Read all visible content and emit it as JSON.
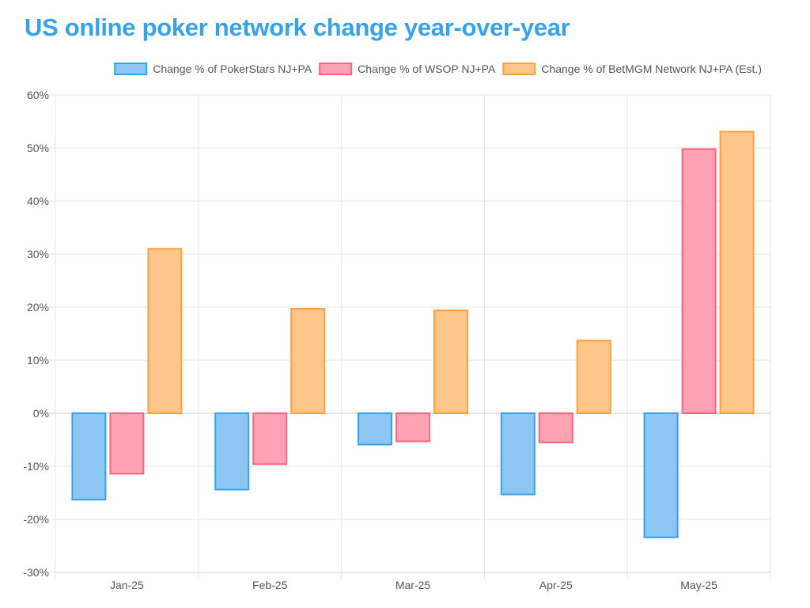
{
  "chart_data": {
    "type": "bar",
    "title": "US online poker network change year-over-year",
    "xlabel": "",
    "ylabel": "",
    "categories": [
      "Jan-25",
      "Feb-25",
      "Mar-25",
      "Apr-25",
      "May-25"
    ],
    "series": [
      {
        "name": "Change % of PokerStars NJ+PA",
        "values": [
          -16.3,
          -14.4,
          -5.9,
          -15.3,
          -23.4
        ],
        "fill": "#8bc7f2",
        "stroke": "#36a2eb"
      },
      {
        "name": "Change % of WSOP NJ+PA",
        "values": [
          -11.4,
          -9.6,
          -5.3,
          -5.5,
          49.8
        ],
        "fill": "#ffa2b4",
        "stroke": "#ff6384"
      },
      {
        "name": "Change % of BetMGM Network NJ+PA (Est.)",
        "values": [
          31.0,
          19.7,
          19.4,
          13.7,
          53.1
        ],
        "fill": "#ffc68c",
        "stroke": "#ff9f40"
      }
    ],
    "ylim": [
      -30,
      60
    ],
    "yticks": [
      "60%",
      "50%",
      "40%",
      "30%",
      "20%",
      "10%",
      "0%",
      "-10%",
      "-20%",
      "-30%"
    ],
    "grid": true,
    "legend": "top-right"
  }
}
